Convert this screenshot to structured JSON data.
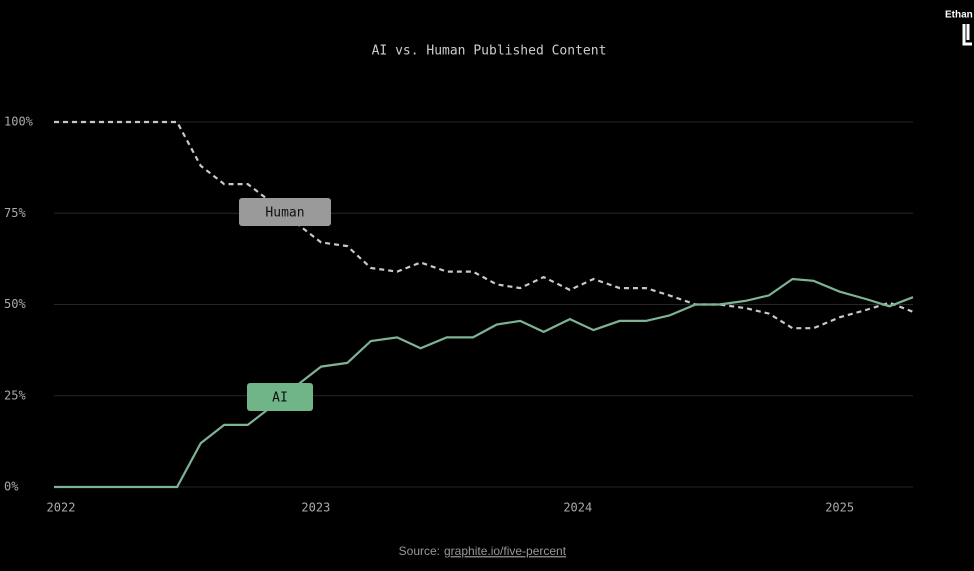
{
  "chart_data": {
    "type": "line",
    "title": "AI vs. Human Published Content",
    "x": [
      2022.0,
      2022.47,
      2022.56,
      2022.65,
      2022.74,
      2022.83,
      2022.93,
      2023.02,
      2023.12,
      2023.21,
      2023.31,
      2023.4,
      2023.5,
      2023.6,
      2023.69,
      2023.78,
      2023.87,
      2023.97,
      2024.06,
      2024.16,
      2024.26,
      2024.35,
      2024.45,
      2024.54,
      2024.64,
      2024.73,
      2024.82,
      2024.9,
      2025.0,
      2025.1,
      2025.19,
      2025.28
    ],
    "series": [
      {
        "name": "Human",
        "color": "#c8c8c8",
        "dashed": true,
        "label_color": "#9a9a9a",
        "values": [
          100,
          100,
          88,
          83,
          83,
          78,
          72,
          67,
          66,
          60,
          59,
          61.5,
          59,
          59,
          55.5,
          54.5,
          57.5,
          54,
          57,
          54.5,
          54.5,
          52.5,
          50,
          50,
          49,
          47.5,
          43.5,
          43.5,
          46.5,
          48.5,
          50.5,
          48
        ]
      },
      {
        "name": "AI",
        "color": "#7db394",
        "dashed": false,
        "label_color": "#6fb587",
        "values": [
          0,
          0,
          12,
          17,
          17,
          22,
          28,
          33,
          34,
          40,
          41,
          38,
          41,
          41,
          44.5,
          45.5,
          42.5,
          46,
          43,
          45.5,
          45.5,
          47,
          50,
          50,
          51,
          52.5,
          57,
          56.5,
          53.5,
          51.5,
          49.5,
          52
        ]
      }
    ],
    "xlim": [
      2022,
      2025.28
    ],
    "xticks": [
      2022,
      2023,
      2024,
      2025
    ],
    "ylim": [
      0,
      100
    ],
    "yticks": [
      {
        "value": 0,
        "label": "0%"
      },
      {
        "value": 25,
        "label": "25%"
      },
      {
        "value": 50,
        "label": "50%"
      },
      {
        "value": 75,
        "label": "75%"
      },
      {
        "value": 100,
        "label": "100%"
      }
    ],
    "grid": true,
    "source_label": "Source:",
    "source_link": "graphite.io/five-percent",
    "watermark": "Ethan"
  }
}
